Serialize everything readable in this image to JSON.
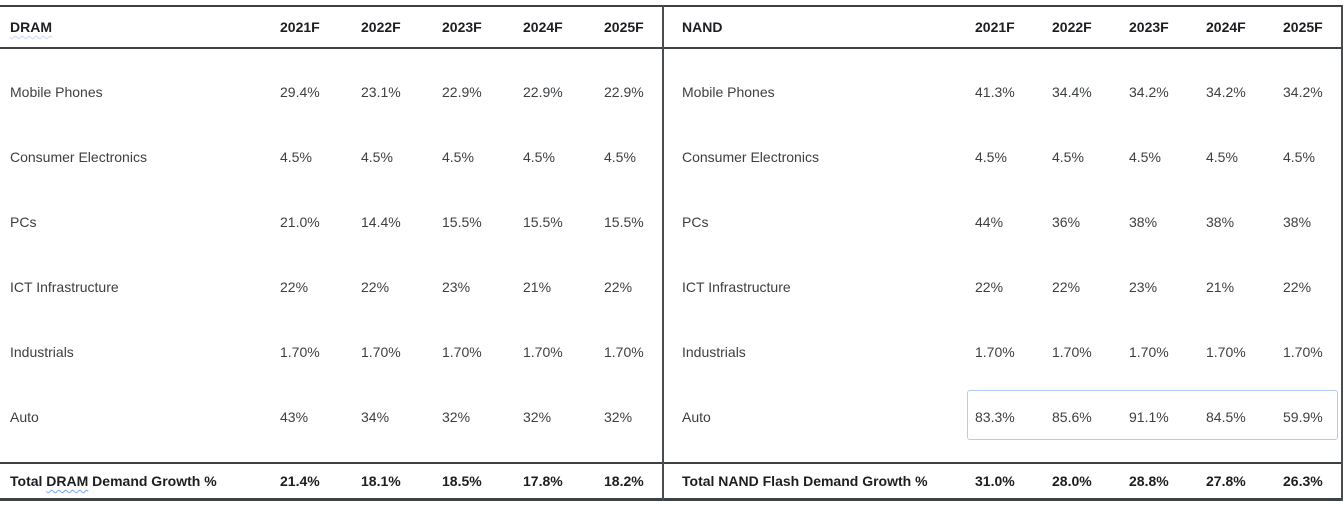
{
  "colors": {
    "border_dark": "#3f4245",
    "spellcheck_squiggle_blue": "#79a4f5",
    "selection_box_blue": "#b3cbf2",
    "header_text": "#1c1e21",
    "body_text": "#3c4043"
  },
  "dram": {
    "title": "DRAM",
    "years": [
      "2021F",
      "2022F",
      "2023F",
      "2024F",
      "2025F"
    ],
    "rows": [
      {
        "label": "Mobile Phones",
        "values": [
          "29.4%",
          "23.1%",
          "22.9%",
          "22.9%",
          "22.9%"
        ]
      },
      {
        "label": "Consumer Electronics",
        "values": [
          "4.5%",
          "4.5%",
          "4.5%",
          "4.5%",
          "4.5%"
        ]
      },
      {
        "label": "PCs",
        "values": [
          "21.0%",
          "14.4%",
          "15.5%",
          "15.5%",
          "15.5%"
        ]
      },
      {
        "label": "ICT Infrastructure",
        "values": [
          "22%",
          "22%",
          "23%",
          "21%",
          "22%"
        ]
      },
      {
        "label": "Industrials",
        "values": [
          "1.70%",
          "1.70%",
          "1.70%",
          "1.70%",
          "1.70%"
        ]
      },
      {
        "label": "Auto",
        "values": [
          "43%",
          "34%",
          "32%",
          "32%",
          "32%"
        ]
      }
    ],
    "total": {
      "prefix": "Total ",
      "word": "DRAM",
      "suffix": " Demand Growth %",
      "values": [
        "21.4%",
        "18.1%",
        "18.5%",
        "17.8%",
        "18.2%"
      ]
    }
  },
  "nand": {
    "title": "NAND",
    "years": [
      "2021F",
      "2022F",
      "2023F",
      "2024F",
      "2025F"
    ],
    "rows": [
      {
        "label": "Mobile Phones",
        "values": [
          "41.3%",
          "34.4%",
          "34.2%",
          "34.2%",
          "34.2%"
        ]
      },
      {
        "label": "Consumer Electronics",
        "values": [
          "4.5%",
          "4.5%",
          "4.5%",
          "4.5%",
          "4.5%"
        ]
      },
      {
        "label": "PCs",
        "values": [
          "44%",
          "36%",
          "38%",
          "38%",
          "38%"
        ]
      },
      {
        "label": "ICT Infrastructure",
        "values": [
          "22%",
          "22%",
          "23%",
          "21%",
          "22%"
        ]
      },
      {
        "label": "Industrials",
        "values": [
          "1.70%",
          "1.70%",
          "1.70%",
          "1.70%",
          "1.70%"
        ]
      },
      {
        "label": "Auto",
        "values": [
          "83.3%",
          "85.6%",
          "91.1%",
          "84.5%",
          "59.9%"
        ]
      }
    ],
    "total": {
      "label": "Total NAND Flash Demand Growth %",
      "values": [
        "31.0%",
        "28.0%",
        "28.8%",
        "27.8%",
        "26.3%"
      ]
    }
  }
}
